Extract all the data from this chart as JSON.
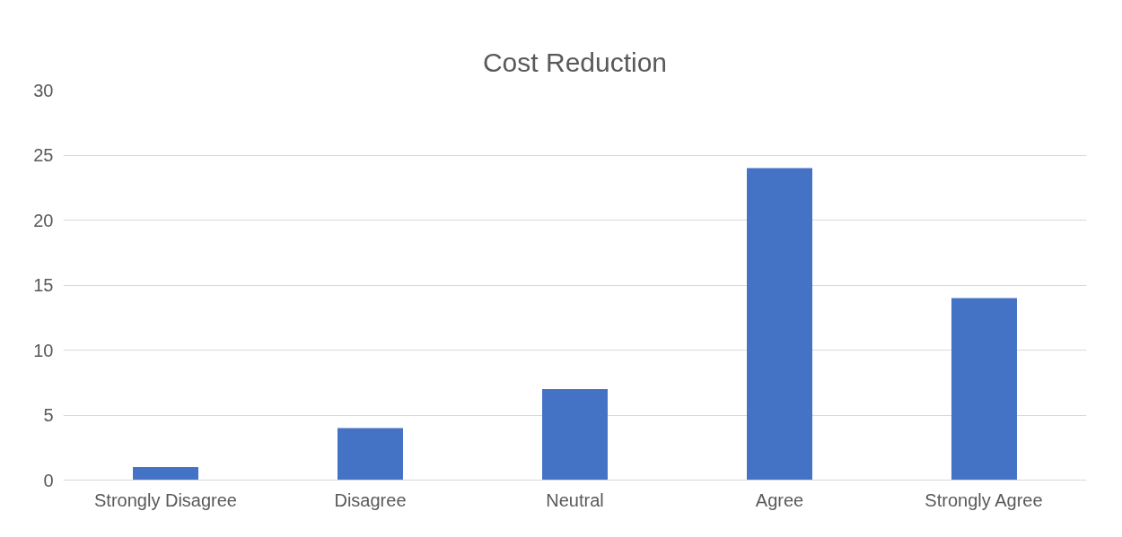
{
  "chart_data": {
    "type": "bar",
    "title": "Cost Reduction",
    "categories": [
      "Strongly Disagree",
      "Disagree",
      "Neutral",
      "Agree",
      "Strongly Agree"
    ],
    "values": [
      1,
      4,
      7,
      24,
      14
    ],
    "color": "#4472c4",
    "ylim": [
      0,
      30
    ],
    "yticks": [
      0,
      5,
      10,
      15,
      20,
      25,
      30
    ],
    "grid": "y"
  }
}
